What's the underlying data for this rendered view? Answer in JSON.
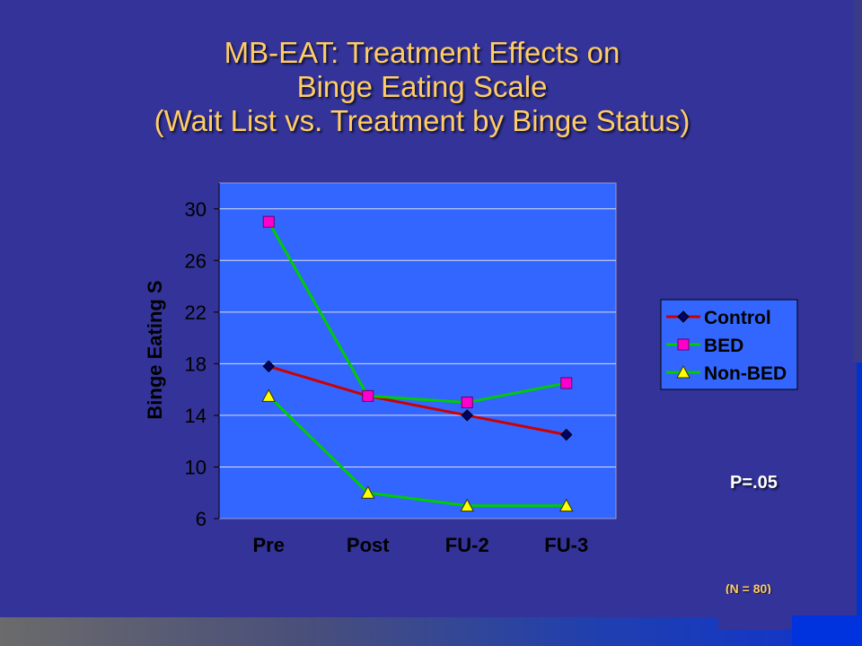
{
  "title": {
    "line1": "MB-EAT: Treatment Effects on",
    "line2": "Binge Eating Scale",
    "line3": "(Wait List vs. Treatment by Binge Status)"
  },
  "p_value": "P=.05",
  "n_note": "(N = 80)",
  "colors": {
    "background": "#333399",
    "plot_area": "#3366FF",
    "title": "#FFCC66",
    "control": "#CC0000",
    "control_marker": "#000066",
    "bed": "#00CC00",
    "bed_marker": "#FF00CC",
    "nonbed": "#00CC00",
    "nonbed_marker": "#FFFF00"
  },
  "chart_data": {
    "type": "line",
    "categories": [
      "Pre",
      "Post",
      "FU-2",
      "FU-3"
    ],
    "ylabel": "Binge Eating S",
    "ylim": [
      6,
      32
    ],
    "yticks": [
      "6",
      "10",
      "14",
      "18",
      "22",
      "26",
      "30"
    ],
    "grid": true,
    "legend_position": "right",
    "series": [
      {
        "name": "Control",
        "values": [
          17.8,
          15.5,
          14.0,
          12.5
        ],
        "marker": "diamond"
      },
      {
        "name": "BED",
        "values": [
          29.0,
          15.5,
          15.0,
          16.5
        ],
        "marker": "square"
      },
      {
        "name": "Non-BED",
        "values": [
          15.5,
          8.0,
          7.0,
          7.0
        ],
        "marker": "triangle"
      }
    ]
  }
}
